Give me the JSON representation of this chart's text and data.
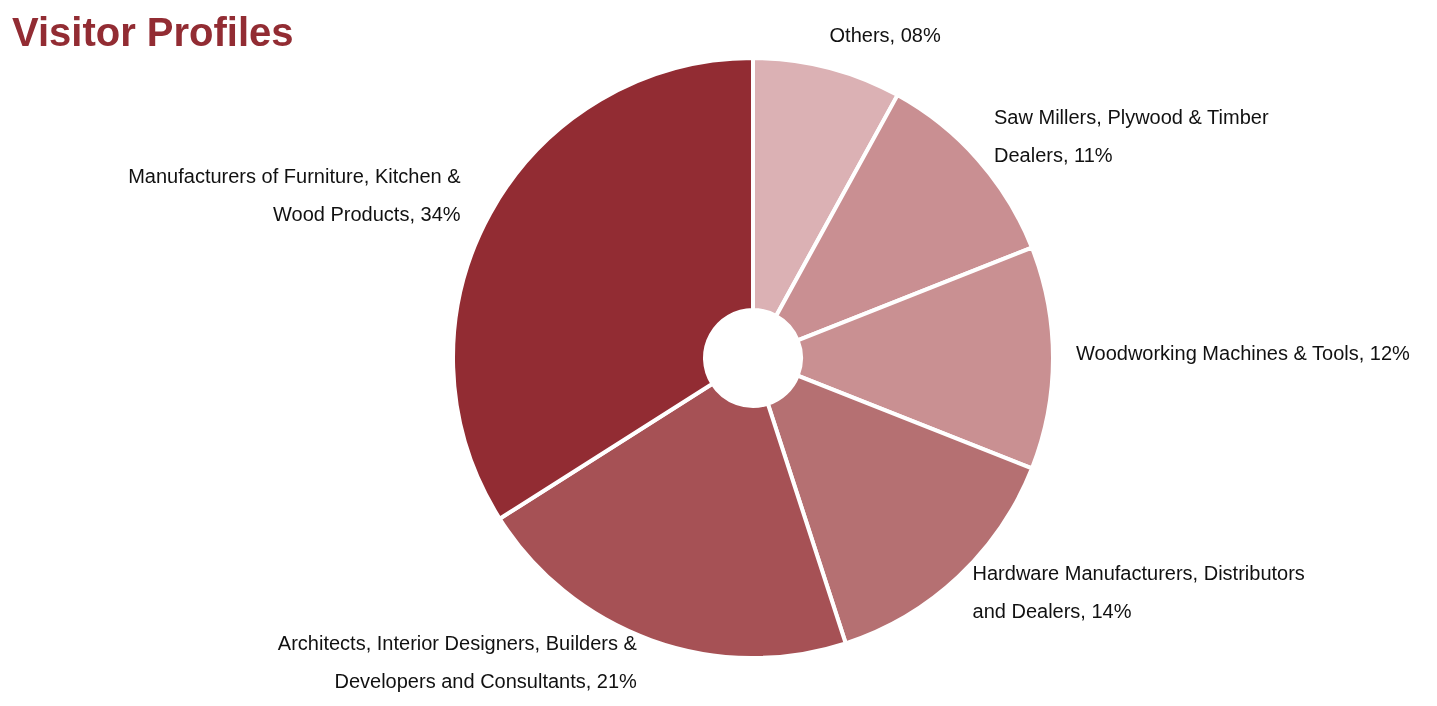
{
  "chart_data": {
    "type": "donut",
    "title": "Visitor Profiles",
    "categories": [
      "Others, 08%",
      "Saw Millers, Plywood & Timber Dealers, 11%",
      "Woodworking Machines & Tools, 12%",
      "Hardware Manufacturers, Distributors and Dealers, 14%",
      "Architects, Interior Designers, Builders & Developers and Consultants, 21%",
      "Manufacturers of Furniture, Kitchen & Wood Products, 34%"
    ],
    "values": [
      8,
      11,
      12,
      14,
      21,
      34
    ],
    "colors": [
      "#dbb1b4",
      "#c98f92",
      "#c99092",
      "#b57072",
      "#a65155",
      "#922c33"
    ]
  }
}
